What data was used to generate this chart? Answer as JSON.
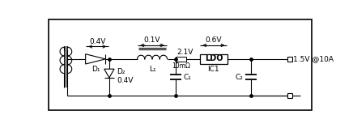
{
  "bg_color": "#ffffff",
  "border_color": "#000000",
  "line_color": "#000000",
  "line_width": 0.8,
  "labels": {
    "voltage_d1": "0.4V",
    "voltage_l1": "0.1V",
    "voltage_ldo": "0.6V",
    "voltage_node": "2.1V",
    "voltage_d2": "0.4V",
    "resistor": "10mΩ",
    "inductor": "L₁",
    "diode1": "D₁",
    "diode2": "D₂",
    "cap1": "C₁",
    "cap2": "C₂",
    "ic1": "IC1",
    "ldo": "LDO",
    "output": "1.5V @10A"
  },
  "yr": 88,
  "yb": 30,
  "xstart": 38,
  "xend": 395
}
